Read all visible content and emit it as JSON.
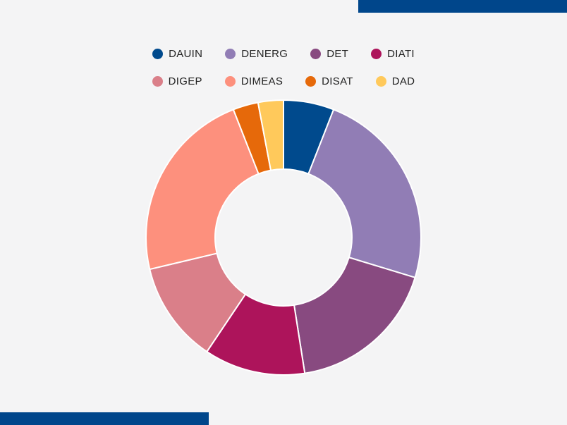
{
  "theme": {
    "accent": "#00468b",
    "background": "#f4f4f5"
  },
  "chart_data": {
    "type": "pie",
    "variant": "donut",
    "title": "",
    "legend_position": "top",
    "categories": [
      "DAUIN",
      "DENERG",
      "DET",
      "DIATI",
      "DIGEP",
      "DIMEAS",
      "DISAT",
      "DAD"
    ],
    "values": [
      6,
      24,
      18,
      12,
      12,
      23,
      3,
      3
    ],
    "colors": [
      "#004a8d",
      "#917db5",
      "#884a80",
      "#ad145b",
      "#da7f89",
      "#fd907d",
      "#e6690a",
      "#ffc95b"
    ]
  }
}
